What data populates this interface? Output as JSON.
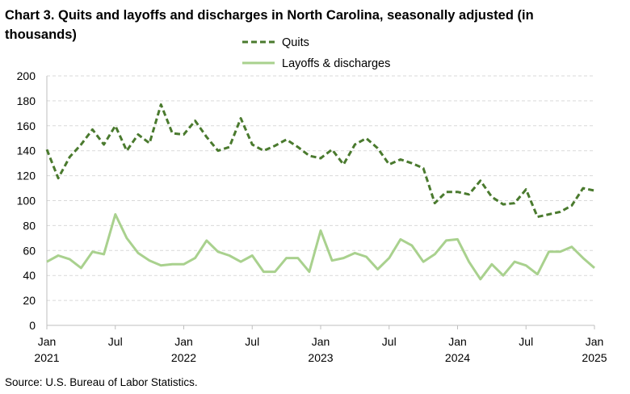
{
  "chart_data": {
    "type": "line",
    "title": "Chart 3. Quits and layoffs and discharges in North Carolina, seasonally adjusted (in thousands)",
    "source": "Source: U.S. Bureau of Labor Statistics.",
    "ylim": [
      0,
      200
    ],
    "yticks": [
      0,
      20,
      40,
      60,
      80,
      100,
      120,
      140,
      160,
      180,
      200
    ],
    "x_count": 49,
    "xticks": [
      {
        "index": 0,
        "month": "Jan",
        "year": "2021"
      },
      {
        "index": 6,
        "month": "Jul",
        "year": ""
      },
      {
        "index": 12,
        "month": "Jan",
        "year": "2022"
      },
      {
        "index": 18,
        "month": "Jul",
        "year": ""
      },
      {
        "index": 24,
        "month": "Jan",
        "year": "2023"
      },
      {
        "index": 30,
        "month": "Jul",
        "year": ""
      },
      {
        "index": 36,
        "month": "Jan",
        "year": "2024"
      },
      {
        "index": 42,
        "month": "Jul",
        "year": ""
      },
      {
        "index": 48,
        "month": "Jan",
        "year": "2025"
      }
    ],
    "grid": true,
    "legend_position": "top-center",
    "series": [
      {
        "name": "Quits",
        "color": "#4a7a2e",
        "style": "dashed",
        "values": [
          141,
          118,
          135,
          145,
          157,
          145,
          160,
          140,
          153,
          146,
          177,
          154,
          153,
          164,
          151,
          140,
          143,
          166,
          145,
          140,
          144,
          149,
          143,
          136,
          134,
          141,
          129,
          145,
          150,
          142,
          129,
          133,
          130,
          126,
          98,
          107,
          107,
          105,
          116,
          103,
          97,
          98,
          109,
          87,
          89,
          91,
          96,
          110,
          108
        ]
      },
      {
        "name": "Layoffs & discharges",
        "color": "#a9d18e",
        "style": "solid",
        "values": [
          51,
          56,
          53,
          46,
          59,
          57,
          89,
          70,
          58,
          52,
          48,
          49,
          49,
          54,
          68,
          59,
          56,
          51,
          56,
          43,
          43,
          54,
          54,
          43,
          76,
          52,
          54,
          58,
          55,
          45,
          54,
          69,
          64,
          51,
          57,
          68,
          69,
          51,
          37,
          49,
          40,
          51,
          48,
          41,
          59,
          59,
          63,
          54,
          46
        ]
      }
    ]
  }
}
